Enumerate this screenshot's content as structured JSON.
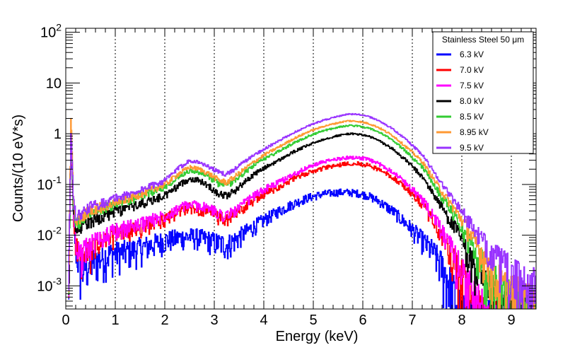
{
  "chart_data": {
    "type": "line",
    "title": "",
    "xlabel": "Energy (keV)",
    "ylabel": "Counts/(10 eV*s)",
    "xlim": [
      0,
      9.5
    ],
    "ylim": [
      0.00035,
      120
    ],
    "yscale": "log",
    "x_ticks": [
      "0",
      "1",
      "2",
      "3",
      "4",
      "5",
      "6",
      "7",
      "8",
      "9"
    ],
    "y_ticks": [
      {
        "base": "10",
        "exp": "-3"
      },
      {
        "base": "10",
        "exp": "-2"
      },
      {
        "base": "10",
        "exp": "-1"
      },
      {
        "base": "1",
        "exp": ""
      },
      {
        "base": "10",
        "exp": ""
      },
      {
        "base": "10",
        "exp": "2"
      }
    ],
    "grid_x": true,
    "legend": {
      "title": "Stainless Steel 50 μm",
      "placement": "top-right"
    },
    "x": [
      0.05,
      0.1,
      0.15,
      0.2,
      0.3,
      0.5,
      0.8,
      1.0,
      1.3,
      1.6,
      2.0,
      2.3,
      2.5,
      2.7,
      2.9,
      3.1,
      3.25,
      3.4,
      3.6,
      3.8,
      4.0,
      4.3,
      4.6,
      4.9,
      5.2,
      5.5,
      5.7,
      5.9,
      6.1,
      6.3,
      6.6,
      6.9,
      7.2,
      7.4,
      7.6,
      7.8,
      8.0,
      8.2,
      8.5,
      8.8,
      9.1,
      9.5
    ],
    "series": [
      {
        "name": "6.3 kV",
        "color": "#0000ff",
        "values": [
          0.0004,
          1.5,
          0.02,
          0.005,
          0.002,
          0.003,
          0.004,
          0.0045,
          0.005,
          0.006,
          0.008,
          0.009,
          0.0095,
          0.009,
          0.008,
          0.007,
          0.0065,
          0.008,
          0.011,
          0.015,
          0.02,
          0.03,
          0.042,
          0.055,
          0.065,
          0.07,
          0.07,
          0.067,
          0.06,
          0.048,
          0.03,
          0.016,
          0.008,
          0.005,
          0.0025,
          0.0009,
          0.0003,
          0.0003,
          0.0003,
          0.0003,
          0.0003,
          0.0003
        ]
      },
      {
        "name": "7.0 kV",
        "color": "#ff0000",
        "values": [
          0.0004,
          1.5,
          0.025,
          0.007,
          0.003,
          0.005,
          0.008,
          0.01,
          0.012,
          0.015,
          0.02,
          0.03,
          0.035,
          0.032,
          0.028,
          0.022,
          0.02,
          0.025,
          0.035,
          0.05,
          0.065,
          0.09,
          0.13,
          0.17,
          0.21,
          0.24,
          0.26,
          0.26,
          0.24,
          0.2,
          0.14,
          0.08,
          0.04,
          0.02,
          0.009,
          0.004,
          0.0015,
          0.0005,
          0.0003,
          0.0003,
          0.0003,
          0.0003
        ]
      },
      {
        "name": "7.5 kV",
        "color": "#ff00ff",
        "values": [
          0.0004,
          1.5,
          0.025,
          0.008,
          0.004,
          0.007,
          0.01,
          0.012,
          0.015,
          0.018,
          0.025,
          0.035,
          0.04,
          0.038,
          0.033,
          0.027,
          0.024,
          0.03,
          0.042,
          0.06,
          0.08,
          0.11,
          0.16,
          0.22,
          0.28,
          0.32,
          0.34,
          0.34,
          0.31,
          0.26,
          0.18,
          0.1,
          0.05,
          0.025,
          0.012,
          0.005,
          0.002,
          0.0007,
          0.0003,
          0.0003,
          0.0003,
          0.0003
        ]
      },
      {
        "name": "8.0 kV",
        "color": "#000000",
        "values": [
          0.0004,
          1.4,
          0.03,
          0.012,
          0.015,
          0.02,
          0.025,
          0.03,
          0.035,
          0.045,
          0.06,
          0.1,
          0.13,
          0.12,
          0.09,
          0.065,
          0.06,
          0.075,
          0.11,
          0.16,
          0.21,
          0.3,
          0.44,
          0.6,
          0.78,
          0.92,
          1.0,
          0.98,
          0.9,
          0.75,
          0.5,
          0.28,
          0.14,
          0.07,
          0.035,
          0.017,
          0.008,
          0.003,
          0.0008,
          0.0004,
          0.0003,
          0.0003
        ]
      },
      {
        "name": "8.5 kV",
        "color": "#33cc33",
        "values": [
          0.0004,
          1.4,
          0.035,
          0.018,
          0.02,
          0.03,
          0.035,
          0.042,
          0.05,
          0.065,
          0.09,
          0.15,
          0.19,
          0.17,
          0.14,
          0.1,
          0.095,
          0.12,
          0.17,
          0.24,
          0.32,
          0.45,
          0.66,
          0.9,
          1.15,
          1.35,
          1.45,
          1.42,
          1.3,
          1.1,
          0.75,
          0.42,
          0.22,
          0.11,
          0.055,
          0.03,
          0.014,
          0.006,
          0.002,
          0.0008,
          0.0005,
          0.0004
        ]
      },
      {
        "name": "8.95 kV",
        "color": "#ff9933",
        "values": [
          0.0004,
          2.8,
          0.04,
          0.02,
          0.022,
          0.032,
          0.038,
          0.045,
          0.055,
          0.07,
          0.1,
          0.17,
          0.22,
          0.2,
          0.16,
          0.12,
          0.11,
          0.14,
          0.2,
          0.28,
          0.38,
          0.55,
          0.8,
          1.1,
          1.4,
          1.65,
          1.8,
          1.75,
          1.6,
          1.35,
          0.92,
          0.52,
          0.28,
          0.14,
          0.07,
          0.038,
          0.02,
          0.009,
          0.003,
          0.001,
          0.0007,
          0.0005
        ]
      },
      {
        "name": "9.5 kV",
        "color": "#9933ff",
        "values": [
          0.0004,
          1.4,
          0.045,
          0.025,
          0.025,
          0.038,
          0.045,
          0.055,
          0.065,
          0.085,
          0.12,
          0.22,
          0.3,
          0.27,
          0.22,
          0.17,
          0.16,
          0.2,
          0.28,
          0.38,
          0.5,
          0.72,
          1.05,
          1.45,
          1.85,
          2.2,
          2.45,
          2.4,
          2.2,
          1.85,
          1.25,
          0.72,
          0.38,
          0.2,
          0.1,
          0.055,
          0.03,
          0.015,
          0.006,
          0.003,
          0.0015,
          0.001
        ]
      }
    ]
  }
}
